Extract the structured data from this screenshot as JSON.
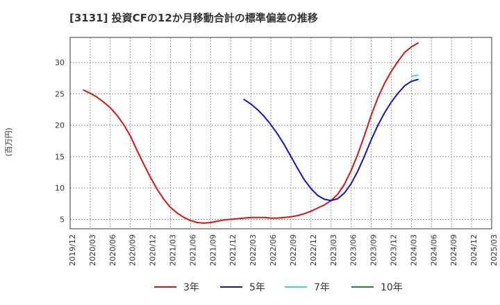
{
  "chart_data": {
    "type": "line",
    "title": "[3131]  投資CFの12か月移動合計の標準偏差の推移",
    "ylabel": "(百万円)",
    "xlabel": "",
    "ylim": [
      3.5,
      34
    ],
    "yticks": [
      5,
      10,
      15,
      20,
      25,
      30
    ],
    "xlim": [
      "2019-12",
      "2025-03"
    ],
    "xticks": [
      "2019/12",
      "2020/03",
      "2020/06",
      "2020/09",
      "2020/12",
      "2021/03",
      "2021/06",
      "2021/09",
      "2021/12",
      "2022/03",
      "2022/06",
      "2022/09",
      "2022/12",
      "2023/03",
      "2023/06",
      "2023/09",
      "2023/12",
      "2024/03",
      "2024/06",
      "2024/09",
      "2024/12",
      "2025/03"
    ],
    "grid": true,
    "legend_position": "bottom",
    "series": [
      {
        "name": "3年",
        "color": "#dd1111",
        "points": [
          [
            "2020-02",
            25.6
          ],
          [
            "2020-03",
            25.1
          ],
          [
            "2020-04",
            24.5
          ],
          [
            "2020-05",
            23.7
          ],
          [
            "2020-06",
            22.8
          ],
          [
            "2020-07",
            21.6
          ],
          [
            "2020-08",
            20.1
          ],
          [
            "2020-09",
            18.3
          ],
          [
            "2020-10",
            16.0
          ],
          [
            "2020-11",
            13.8
          ],
          [
            "2020-12",
            11.7
          ],
          [
            "2021-01",
            9.8
          ],
          [
            "2021-02",
            8.2
          ],
          [
            "2021-03",
            6.9
          ],
          [
            "2021-04",
            6.0
          ],
          [
            "2021-05",
            5.3
          ],
          [
            "2021-06",
            4.8
          ],
          [
            "2021-07",
            4.5
          ],
          [
            "2021-08",
            4.4
          ],
          [
            "2021-09",
            4.5
          ],
          [
            "2021-10",
            4.7
          ],
          [
            "2021-11",
            4.9
          ],
          [
            "2021-12",
            5.0
          ],
          [
            "2022-01",
            5.1
          ],
          [
            "2022-02",
            5.2
          ],
          [
            "2022-03",
            5.3
          ],
          [
            "2022-04",
            5.3
          ],
          [
            "2022-05",
            5.3
          ],
          [
            "2022-06",
            5.2
          ],
          [
            "2022-07",
            5.2
          ],
          [
            "2022-08",
            5.3
          ],
          [
            "2022-09",
            5.4
          ],
          [
            "2022-10",
            5.6
          ],
          [
            "2022-11",
            5.9
          ],
          [
            "2022-12",
            6.3
          ],
          [
            "2023-01",
            6.8
          ],
          [
            "2023-02",
            7.3
          ],
          [
            "2023-03",
            8.0
          ],
          [
            "2023-04",
            9.0
          ],
          [
            "2023-05",
            10.6
          ],
          [
            "2023-06",
            12.8
          ],
          [
            "2023-07",
            15.4
          ],
          [
            "2023-08",
            18.4
          ],
          [
            "2023-09",
            21.6
          ],
          [
            "2023-10",
            24.4
          ],
          [
            "2023-11",
            26.7
          ],
          [
            "2023-12",
            28.6
          ],
          [
            "2024-01",
            30.2
          ],
          [
            "2024-02",
            31.6
          ],
          [
            "2024-03",
            32.5
          ],
          [
            "2024-04",
            33.1
          ]
        ]
      },
      {
        "name": "5年",
        "color": "#1111cc",
        "points": [
          [
            "2022-02",
            24.1
          ],
          [
            "2022-03",
            23.4
          ],
          [
            "2022-04",
            22.5
          ],
          [
            "2022-05",
            21.4
          ],
          [
            "2022-06",
            20.1
          ],
          [
            "2022-07",
            18.6
          ],
          [
            "2022-08",
            16.9
          ],
          [
            "2022-09",
            15.0
          ],
          [
            "2022-10",
            13.1
          ],
          [
            "2022-11",
            11.3
          ],
          [
            "2022-12",
            9.9
          ],
          [
            "2023-01",
            8.8
          ],
          [
            "2023-02",
            8.2
          ],
          [
            "2023-03",
            8.0
          ],
          [
            "2023-04",
            8.3
          ],
          [
            "2023-05",
            9.2
          ],
          [
            "2023-06",
            10.7
          ],
          [
            "2023-07",
            12.7
          ],
          [
            "2023-08",
            15.1
          ],
          [
            "2023-09",
            17.7
          ],
          [
            "2023-10",
            20.0
          ],
          [
            "2023-11",
            22.0
          ],
          [
            "2023-12",
            23.7
          ],
          [
            "2024-01",
            25.1
          ],
          [
            "2024-02",
            26.3
          ],
          [
            "2024-03",
            27.0
          ],
          [
            "2024-04",
            27.3
          ]
        ]
      },
      {
        "name": "7年",
        "color": "#33dddd",
        "points": [
          [
            "2024-03",
            27.8
          ],
          [
            "2024-04",
            28.0
          ]
        ]
      },
      {
        "name": "10年",
        "color": "#228822",
        "points": []
      }
    ]
  }
}
